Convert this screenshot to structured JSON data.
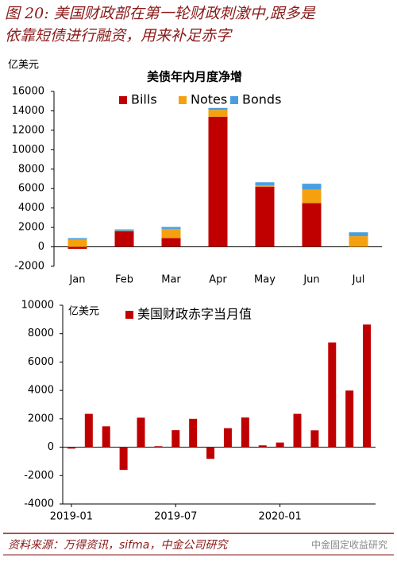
{
  "header": {
    "title_lines": [
      "图 20: 美国财政部在第一轮财政刺激中,跟多是",
      "依靠短债进行融资，用来补足赤字"
    ]
  },
  "chart_data": [
    {
      "type": "bar",
      "stacked": true,
      "title": "美债年内月度净增",
      "unit_label": "亿美元",
      "categories": [
        "Jan",
        "Feb",
        "Mar",
        "Apr",
        "May",
        "Jun",
        "Jul"
      ],
      "series": [
        {
          "name": "Bills",
          "color": "#c00000",
          "values": [
            -200,
            1600,
            900,
            13400,
            6200,
            4500,
            0
          ]
        },
        {
          "name": "Notes",
          "color": "#f5a10f",
          "values": [
            750,
            50,
            950,
            700,
            150,
            1400,
            1100
          ]
        },
        {
          "name": "Bonds",
          "color": "#4a9ee0",
          "values": [
            150,
            150,
            200,
            200,
            300,
            600,
            400
          ]
        }
      ],
      "ylim": [
        -2000,
        16000
      ],
      "yticks": [
        -2000,
        0,
        2000,
        4000,
        6000,
        8000,
        10000,
        12000,
        14000,
        16000
      ]
    },
    {
      "type": "bar",
      "unit_label": "亿美元",
      "categories": [
        "2019-01",
        null,
        null,
        null,
        null,
        null,
        "2019-07",
        null,
        null,
        null,
        null,
        null,
        "2020-01",
        null,
        null,
        null,
        null,
        null
      ],
      "series": [
        {
          "name": "美国财政赤字当月值",
          "color": "#c00000",
          "values": [
            -100,
            2350,
            1470,
            -1600,
            2080,
            70,
            1200,
            2000,
            -820,
            1340,
            2090,
            130,
            330,
            2350,
            1190,
            7380,
            3990,
            8640
          ]
        }
      ],
      "ylim": [
        -4000,
        10000
      ],
      "yticks": [
        -4000,
        -2000,
        0,
        2000,
        4000,
        6000,
        8000,
        10000
      ]
    }
  ],
  "footer": {
    "source": "资料来源：万得资讯，sifma，中金公司研究",
    "watermark": "中金固定收益研究"
  }
}
